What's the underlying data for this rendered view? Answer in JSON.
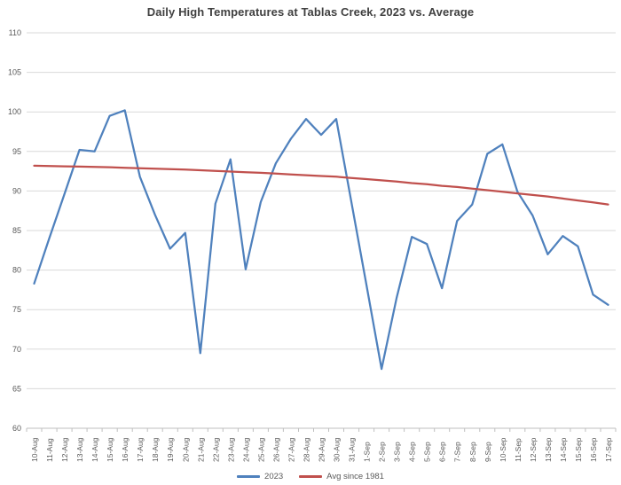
{
  "chart_data": {
    "type": "line",
    "title": "Daily High Temperatures at Tablas Creek, 2023 vs. Average",
    "categories": [
      "10-Aug",
      "11-Aug",
      "12-Aug",
      "13-Aug",
      "14-Aug",
      "15-Aug",
      "16-Aug",
      "17-Aug",
      "18-Aug",
      "19-Aug",
      "20-Aug",
      "21-Aug",
      "22-Aug",
      "23-Aug",
      "24-Aug",
      "25-Aug",
      "26-Aug",
      "27-Aug",
      "28-Aug",
      "29-Aug",
      "30-Aug",
      "31-Aug",
      "1-Sep",
      "2-Sep",
      "3-Sep",
      "4-Sep",
      "5-Sep",
      "6-Sep",
      "7-Sep",
      "8-Sep",
      "9-Sep",
      "10-Sep",
      "11-Sep",
      "12-Sep",
      "13-Sep",
      "14-Sep",
      "15-Sep",
      "16-Sep",
      "17-Sep"
    ],
    "series": [
      {
        "name": "2023",
        "color": "#4F81BD",
        "values": [
          78.3,
          84.0,
          89.6,
          95.2,
          95.0,
          99.5,
          100.2,
          91.8,
          87.0,
          82.7,
          84.7,
          69.5,
          88.4,
          94.0,
          80.1,
          88.6,
          93.5,
          96.6,
          99.1,
          97.1,
          99.1,
          88.6,
          78.1,
          67.5,
          76.5,
          84.2,
          83.3,
          77.7,
          86.2,
          88.3,
          94.7,
          95.9,
          89.9,
          86.9,
          82.0,
          84.3,
          83.0,
          76.9,
          75.6
        ]
      },
      {
        "name": "Avg since 1981",
        "color": "#C0504D",
        "values": [
          93.2,
          93.16,
          93.12,
          93.08,
          93.04,
          93.0,
          92.94,
          92.88,
          92.82,
          92.76,
          92.7,
          92.62,
          92.54,
          92.46,
          92.38,
          92.3,
          92.2,
          92.1,
          92.0,
          91.9,
          91.8,
          91.65,
          91.5,
          91.35,
          91.2,
          91.0,
          90.85,
          90.65,
          90.5,
          90.3,
          90.1,
          89.9,
          89.7,
          89.5,
          89.3,
          89.05,
          88.8,
          88.55,
          88.3
        ]
      }
    ],
    "xlabel": "",
    "ylabel": "",
    "ylim": [
      60,
      110
    ],
    "yticks": [
      60,
      65,
      70,
      75,
      80,
      85,
      90,
      95,
      100,
      105,
      110
    ],
    "grid": true,
    "legend_position": "bottom"
  }
}
